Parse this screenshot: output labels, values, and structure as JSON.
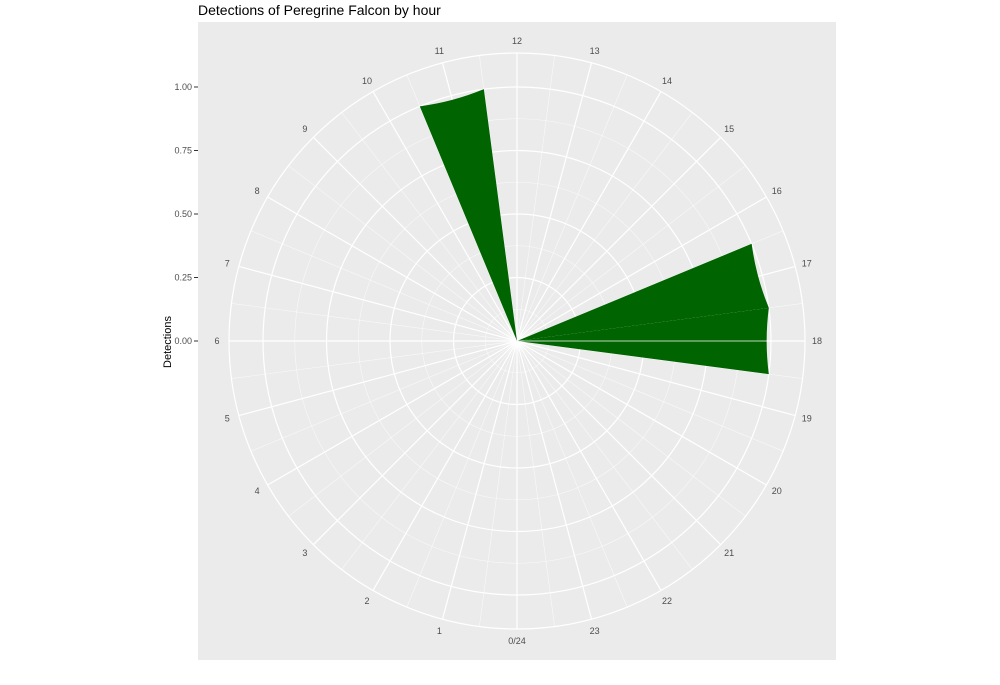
{
  "chart_data": {
    "type": "bar",
    "coord": "polar",
    "title": "Detections of Peregrine Falcon by hour",
    "xlabel": "",
    "ylabel": "Detections",
    "ylim": [
      0,
      1
    ],
    "y_ticks": [
      "0.00",
      "0.25",
      "0.50",
      "0.75",
      "1.00"
    ],
    "hour_labels": [
      "0/24",
      "1",
      "2",
      "3",
      "4",
      "5",
      "6",
      "7",
      "8",
      "9",
      "10",
      "11",
      "12",
      "13",
      "14",
      "15",
      "16",
      "17",
      "18",
      "19",
      "20",
      "21",
      "22",
      "23"
    ],
    "bars": [
      {
        "hour": 11,
        "value": 1.0
      },
      {
        "hour": 17,
        "value": 1.0
      },
      {
        "hour": 18,
        "value": 1.0
      }
    ],
    "bar_color": "#006400",
    "panel_color": "#ebebeb",
    "grid_color": "#ffffff"
  }
}
